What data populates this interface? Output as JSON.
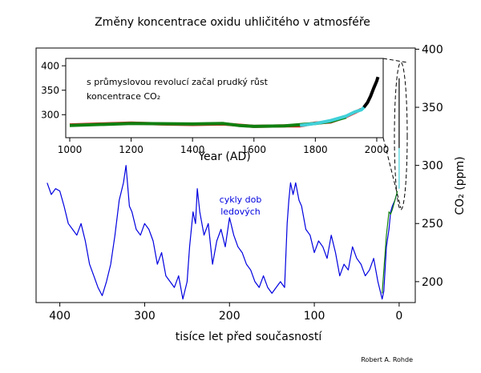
{
  "chart_data": [
    {
      "type": "line",
      "title": "Změny koncentrace oxidu uhličitého v atmosféře",
      "xlabel": "tisíce let před současností",
      "ylabel": "CO₂ (ppm)",
      "credit": "Robert A. Rohde",
      "annotation": [
        "cykly dob",
        "ledových"
      ],
      "xlim": [
        428,
        -19
      ],
      "xticks": [
        400,
        300,
        200,
        100,
        0
      ],
      "ylim": [
        182,
        401
      ],
      "yticks": [
        200,
        250,
        300,
        350,
        400
      ],
      "series": [
        {
          "color": "#0000e0",
          "x": [
            415,
            410,
            405,
            400,
            395,
            390,
            385,
            380,
            375,
            370,
            365,
            360,
            355,
            350,
            345,
            340,
            335,
            330,
            325,
            322,
            318,
            315,
            310,
            305,
            300,
            295,
            290,
            285,
            280,
            275,
            270,
            265,
            260,
            255,
            250,
            247,
            243,
            240,
            238,
            235,
            230,
            225,
            220,
            215,
            210,
            205,
            200,
            195,
            190,
            185,
            180,
            175,
            170,
            165,
            160,
            155,
            150,
            145,
            140,
            135,
            132,
            130,
            128,
            125,
            122,
            118,
            115,
            110,
            105,
            100,
            95,
            90,
            85,
            80,
            75,
            70,
            65,
            60,
            55,
            50,
            45,
            40,
            35,
            30,
            25,
            20,
            18,
            15,
            12,
            10,
            8,
            5,
            3
          ],
          "values": [
            285,
            275,
            280,
            278,
            265,
            250,
            245,
            240,
            250,
            235,
            215,
            205,
            195,
            188,
            200,
            215,
            240,
            270,
            285,
            300,
            265,
            260,
            245,
            240,
            250,
            245,
            235,
            215,
            225,
            205,
            200,
            195,
            205,
            185,
            200,
            230,
            260,
            250,
            280,
            260,
            240,
            250,
            215,
            235,
            245,
            230,
            255,
            240,
            230,
            225,
            215,
            210,
            200,
            195,
            205,
            195,
            190,
            195,
            200,
            195,
            250,
            270,
            285,
            275,
            285,
            270,
            265,
            245,
            240,
            225,
            235,
            230,
            220,
            240,
            225,
            205,
            215,
            210,
            230,
            220,
            215,
            205,
            210,
            220,
            200,
            185,
            192,
            230,
            245,
            260,
            265,
            270,
            275
          ]
        },
        {
          "color": "#108010",
          "x": [
            20,
            15,
            12,
            10,
            8,
            5,
            2
          ],
          "values": [
            190,
            240,
            260,
            258,
            262,
            270,
            278
          ]
        },
        {
          "color": "#40d0d8",
          "x": [
            0,
            -0.03,
            -0.05
          ],
          "values": [
            280,
            300,
            315
          ]
        },
        {
          "color": "#000000",
          "x": [
            -0.05,
            -0.05
          ],
          "values": [
            315,
            375
          ]
        }
      ]
    },
    {
      "type": "line",
      "xlabel": "Year (AD)",
      "annotation": [
        "s průmyslovou revolucí začal prudký růst",
        "koncentrace CO₂"
      ],
      "xlim": [
        987,
        2021
      ],
      "xticks": [
        1000,
        1200,
        1400,
        1600,
        1800,
        2000
      ],
      "ylim": [
        253,
        415
      ],
      "yticks": [
        300,
        350,
        400
      ],
      "series": [
        {
          "color": "#e02020",
          "x": [
            1000,
            1100,
            1200,
            1300,
            1400,
            1500,
            1600,
            1700,
            1750,
            1800,
            1850,
            1900,
            1950
          ],
          "values": [
            279,
            281,
            283,
            281,
            280,
            281,
            276,
            277,
            277,
            283,
            285,
            296,
            311
          ]
        },
        {
          "color": "#108010",
          "x": [
            1000,
            1200,
            1400,
            1500,
            1550,
            1600,
            1700,
            1800,
            1850,
            1900
          ],
          "values": [
            278,
            282,
            281,
            282,
            278,
            276,
            277,
            282,
            286,
            295
          ]
        },
        {
          "color": "#40d0d8",
          "x": [
            1750,
            1800,
            1850,
            1900,
            1930,
            1950,
            1960
          ],
          "values": [
            278,
            282,
            288,
            297,
            306,
            310,
            316
          ]
        },
        {
          "color": "#000000",
          "x": [
            1958,
            1970,
            1980,
            1990,
            2000,
            2004
          ],
          "values": [
            315,
            325,
            338,
            354,
            369,
            377
          ]
        }
      ]
    }
  ]
}
